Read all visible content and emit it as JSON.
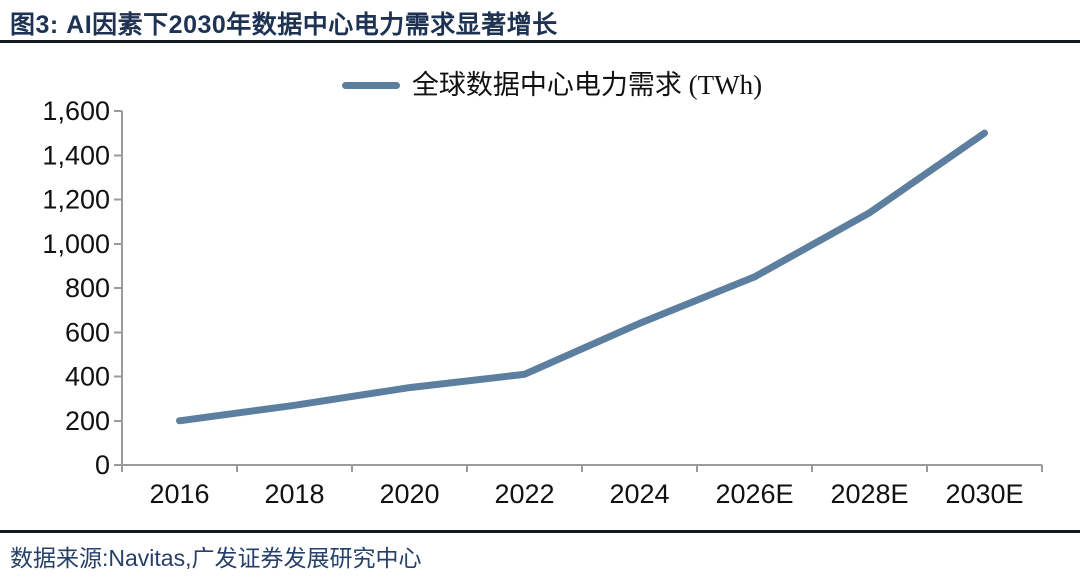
{
  "header": {
    "title": "图3: AI因素下2030年数据中心电力需求显著增长"
  },
  "legend": {
    "label": "全球数据中心电力需求 (TWh)",
    "swatch_color": "#5C7F9F"
  },
  "chart_data": {
    "type": "line",
    "title": "图3: AI因素下2030年数据中心电力需求显著增长",
    "categories": [
      "2016",
      "2018",
      "2020",
      "2022",
      "2024",
      "2026E",
      "2028E",
      "2030E"
    ],
    "series": [
      {
        "name": "全球数据中心电力需求 (TWh)",
        "values": [
          200,
          270,
          350,
          410,
          640,
          850,
          1140,
          1500
        ]
      }
    ],
    "xlabel": "",
    "ylabel": "",
    "ylim": [
      0,
      1600
    ],
    "y_ticks": [
      0,
      200,
      400,
      600,
      800,
      1000,
      1200,
      1400,
      1600
    ],
    "y_tick_labels": [
      "0",
      "200",
      "400",
      "600",
      "800",
      "1,000",
      "1,200",
      "1,400",
      "1,600"
    ],
    "grid": false,
    "legend_position": "top-center",
    "line_color": "#5C7F9F",
    "line_width": 7,
    "axis_color": "#9B9B9B",
    "tick_label_color": "#111111"
  },
  "footer": {
    "source": "数据来源:Navitas,广发证券发展研究中心"
  },
  "colors": {
    "title_navy": "#1E3253",
    "source_navy": "#27406A",
    "rule_dark": "#14181F"
  }
}
